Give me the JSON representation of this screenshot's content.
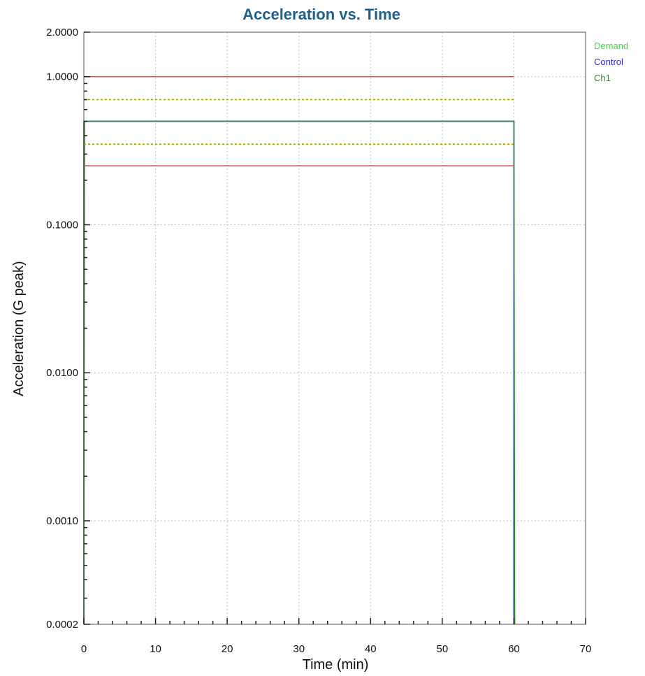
{
  "chart_data": {
    "type": "line",
    "title": "Acceleration vs. Time",
    "xlabel": "Time (min)",
    "ylabel": "Acceleration (G peak)",
    "yscale": "log",
    "xlim": [
      0,
      70
    ],
    "ylim": [
      0.0002,
      2.0
    ],
    "x_ticks": [
      {
        "value": 0,
        "label": "0"
      },
      {
        "value": 10,
        "label": "10"
      },
      {
        "value": 20,
        "label": "20"
      },
      {
        "value": 30,
        "label": "30"
      },
      {
        "value": 40,
        "label": "40"
      },
      {
        "value": 50,
        "label": "50"
      },
      {
        "value": 60,
        "label": "60"
      },
      {
        "value": 70,
        "label": "70"
      }
    ],
    "y_ticks": [
      {
        "value": 2.0,
        "label": "2.0000"
      },
      {
        "value": 1.0,
        "label": "1.0000"
      },
      {
        "value": 0.1,
        "label": "0.1000"
      },
      {
        "value": 0.01,
        "label": "0.0100"
      },
      {
        "value": 0.001,
        "label": "0.0010"
      },
      {
        "value": 0.0002,
        "label": "0.0002"
      }
    ],
    "grid": true,
    "legend_position": "right-top",
    "legend": [
      {
        "label": "Demand",
        "color": "#3ddc3d"
      },
      {
        "label": "Control",
        "color": "#2b2bd6"
      },
      {
        "label": "Ch1",
        "color": "#2e8b2e"
      }
    ],
    "series": [
      {
        "name": "Demand",
        "color": "#3ddc3d",
        "style": "solid",
        "x": [
          0,
          0,
          60,
          60
        ],
        "y": [
          0.0002,
          0.5,
          0.5,
          0.0002
        ]
      },
      {
        "name": "Control",
        "color": "#2b2bd6",
        "style": "solid",
        "x": [
          0,
          0,
          60,
          60
        ],
        "y": [
          0.0002,
          0.5,
          0.5,
          0.0002
        ]
      },
      {
        "name": "Ch1",
        "color": "#2e8b2e",
        "style": "solid",
        "x": [
          0,
          0.1,
          60,
          60.1
        ],
        "y": [
          0.0002,
          0.5,
          0.5,
          0.0002
        ]
      },
      {
        "color": "#e05050",
        "style": "solid",
        "role": "abort-high",
        "x": [
          0,
          60
        ],
        "y": [
          1.0,
          1.0
        ]
      },
      {
        "color": "#e05050",
        "style": "solid",
        "role": "abort-low",
        "x": [
          0,
          60
        ],
        "y": [
          0.25,
          0.25
        ]
      },
      {
        "color": "#9a9a10",
        "style": "dotted",
        "role": "alarm-high",
        "x": [
          0,
          60
        ],
        "y": [
          0.7,
          0.7
        ]
      },
      {
        "color": "#9a9a10",
        "style": "dotted",
        "role": "alarm-low",
        "x": [
          0,
          60
        ],
        "y": [
          0.35,
          0.35
        ]
      }
    ]
  }
}
